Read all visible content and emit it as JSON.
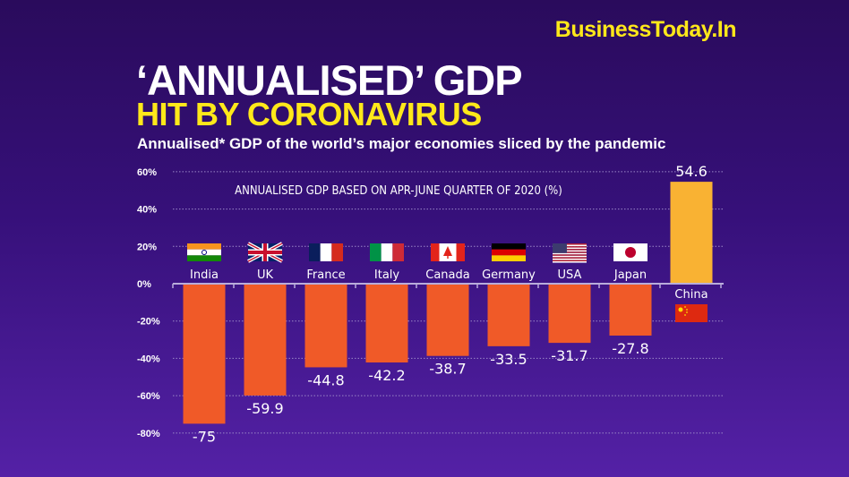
{
  "brand": "BusinessToday.In",
  "title": "‘ANNUALISED’ GDP",
  "title_line2": "HIT BY CORONAVIRUS",
  "subtitle": "Annualised* GDP of the world’s major economies sliced by the pandemic",
  "colors": {
    "background_top": "#2a0b5c",
    "background_bottom": "#5421a6",
    "negative_bar": "#f05a28",
    "positive_bar": "#f9b233",
    "brand_yellow": "#ffe81a"
  },
  "chart_data": {
    "type": "bar",
    "title": "ANNUALISED GDP BASED ON APR-JUNE QUARTER OF 2020 (%)",
    "categories": [
      "India",
      "UK",
      "France",
      "Italy",
      "Canada",
      "Germany",
      "USA",
      "Japan",
      "China"
    ],
    "values": [
      -75,
      -59.9,
      -44.8,
      -42.2,
      -38.7,
      -33.5,
      -31.7,
      -27.8,
      54.6
    ],
    "value_labels": [
      "-75",
      "-59.9",
      "-44.8",
      "-42.2",
      "-38.7",
      "-33.5",
      "-31.7",
      "-27.8",
      "54.6"
    ],
    "flag_icons": [
      "india-flag-icon",
      "uk-flag-icon",
      "france-flag-icon",
      "italy-flag-icon",
      "canada-flag-icon",
      "germany-flag-icon",
      "usa-flag-icon",
      "japan-flag-icon",
      "china-flag-icon"
    ],
    "ylim": [
      -80,
      60
    ],
    "yticks": [
      60,
      40,
      20,
      0,
      -20,
      -40,
      -60,
      -80
    ],
    "ytick_labels": [
      "60%",
      "40%",
      "20%",
      "0%",
      "-20%",
      "-40%",
      "-60%",
      "-80%"
    ],
    "grid": true,
    "gridline_style": "dotted"
  }
}
